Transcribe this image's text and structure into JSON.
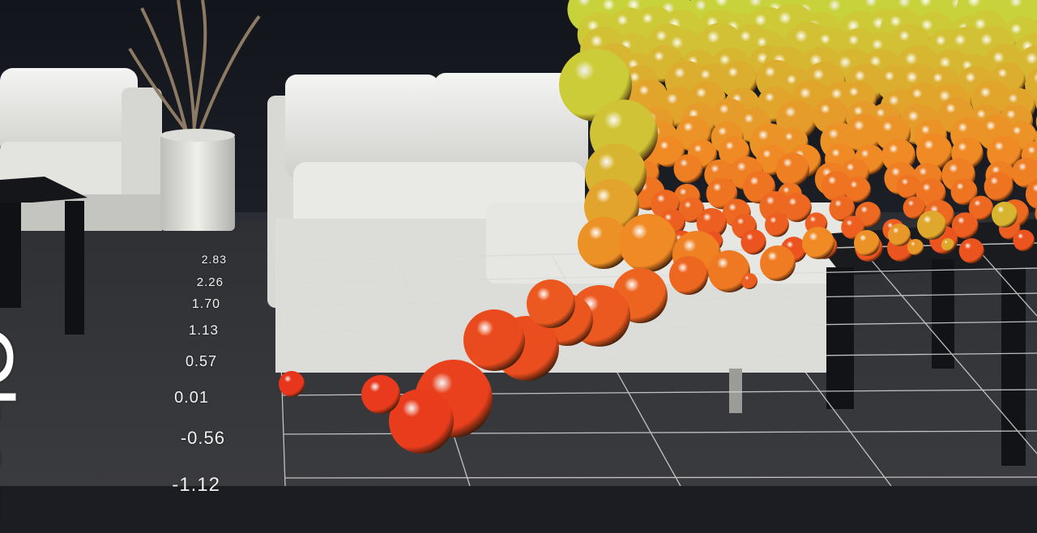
{
  "overlay": {
    "axis_title": "Chan",
    "y_ticks": [
      "2.83",
      "2.26",
      "1.70",
      "1.13",
      "0.57",
      "0.01",
      "-0.56",
      "-1.12"
    ]
  },
  "colors": {
    "bubble_low": "#e8331c",
    "bubble_mid": "#f08a24",
    "bubble_high": "#c8d23a",
    "grid": "#d9d9d9",
    "text": "#ffffff"
  }
}
